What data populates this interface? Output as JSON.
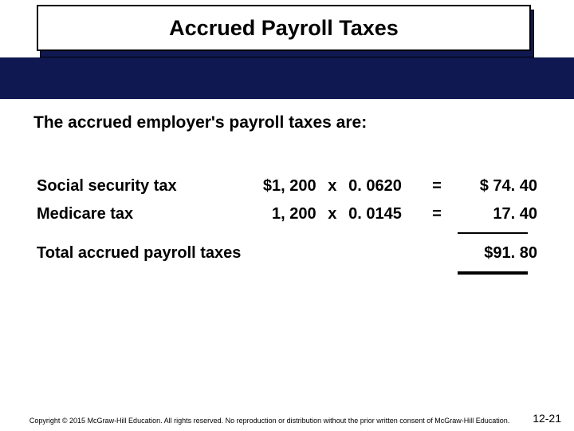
{
  "title": "Accrued Payroll Taxes",
  "intro": "The accrued employer's payroll taxes are:",
  "rows": [
    {
      "label": "Social security tax",
      "base": "$1, 200",
      "x": "x",
      "rate": "0. 0620",
      "eq": "=",
      "result": "$ 74. 40"
    },
    {
      "label": "Medicare tax",
      "base": "1, 200",
      "x": "x",
      "rate": "0. 0145",
      "eq": "=",
      "result": "17. 40"
    }
  ],
  "total": {
    "label": "Total accrued payroll taxes",
    "result": "$91. 80"
  },
  "copyright": "Copyright © 2015 McGraw-Hill Education. All rights reserved. No reproduction or distribution without the prior written consent of McGraw-Hill Education.",
  "page": "12-21",
  "colors": {
    "band": "#0f1850",
    "text": "#000000",
    "bg": "#ffffff"
  }
}
